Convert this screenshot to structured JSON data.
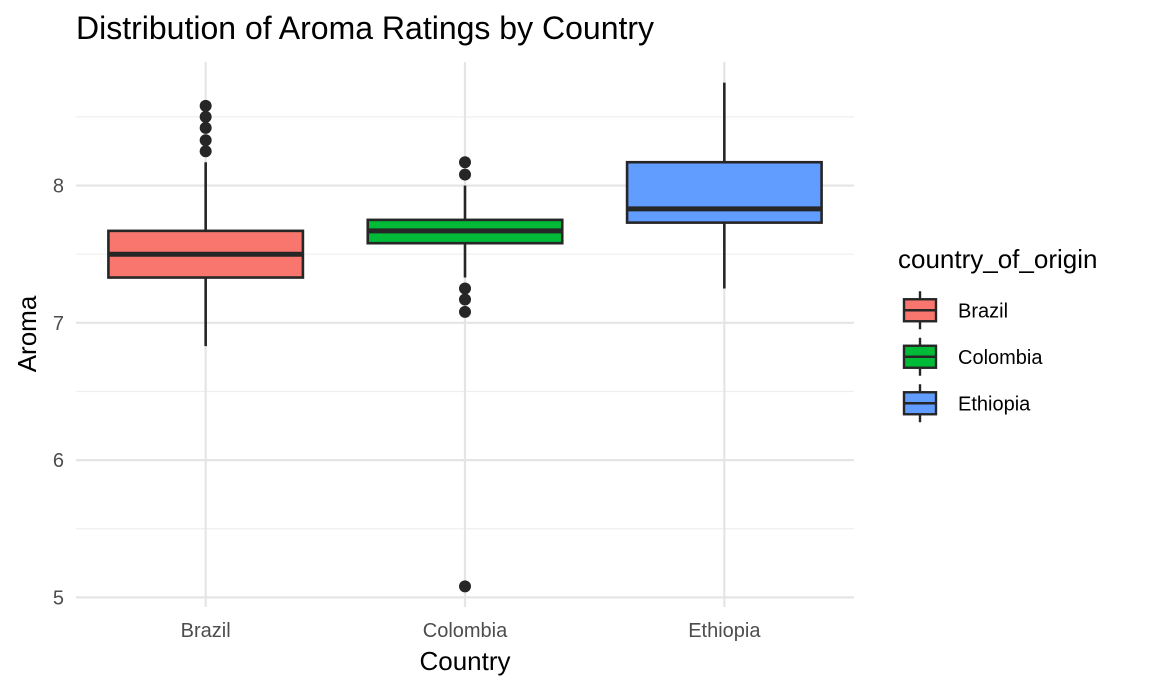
{
  "chart_data": {
    "type": "boxplot",
    "title": "Distribution of Aroma Ratings by Country",
    "xlabel": "Country",
    "ylabel": "Aroma",
    "ylim": [
      4.93,
      8.9
    ],
    "yticks": [
      5,
      6,
      7,
      8
    ],
    "grid": true,
    "legend": {
      "title": "country_of_origin",
      "position": "right"
    },
    "categories": [
      "Brazil",
      "Colombia",
      "Ethiopia"
    ],
    "series": [
      {
        "name": "Brazil",
        "color": "#F8766D",
        "whisker_low": 6.83,
        "q1": 7.33,
        "median": 7.5,
        "q3": 7.67,
        "whisker_high": 8.17,
        "outliers": [
          8.25,
          8.33,
          8.42,
          8.5,
          8.58
        ]
      },
      {
        "name": "Colombia",
        "color": "#00BA38",
        "whisker_low": 7.33,
        "q1": 7.58,
        "median": 7.67,
        "q3": 7.75,
        "whisker_high": 8.0,
        "outliers": [
          5.08,
          7.08,
          7.17,
          7.25,
          8.08,
          8.17
        ]
      },
      {
        "name": "Ethiopia",
        "color": "#619CFF",
        "whisker_low": 7.25,
        "q1": 7.73,
        "median": 7.83,
        "q3": 8.17,
        "whisker_high": 8.75,
        "outliers": []
      }
    ]
  }
}
